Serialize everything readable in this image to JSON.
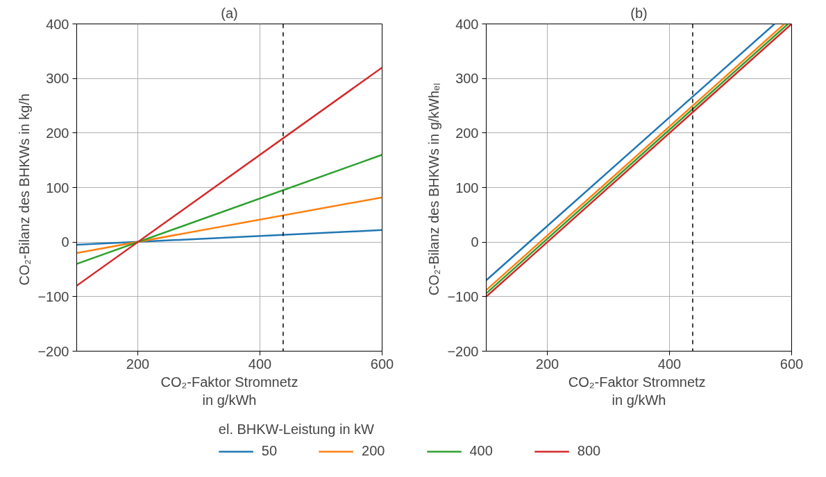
{
  "chart_data": [
    {
      "type": "line",
      "title": "(a)",
      "xlabel": "CO₂-Faktor Stromnetz\nin g/kWh",
      "ylabel": "CO₂-Bilanz des BHKWs  in kg/h",
      "xlim": [
        100,
        600
      ],
      "xticks": [
        200,
        400,
        600
      ],
      "ylim": [
        -200,
        400
      ],
      "yticks": [
        -200,
        -100,
        0,
        100,
        200,
        300,
        400
      ],
      "grid": true,
      "legend": "bottom",
      "legend_title": "el. BHKW-Leistung in kW",
      "ref_lines": [
        {
          "axis": "x",
          "value": 438,
          "color": "#000000",
          "line_style": "dashed"
        }
      ],
      "series": [
        {
          "name": "50",
          "color": "#1f77b4",
          "x": [
            100,
            600
          ],
          "values": [
            -5,
            22
          ]
        },
        {
          "name": "200",
          "color": "#ff7f0e",
          "x": [
            100,
            600
          ],
          "values": [
            -20,
            82
          ]
        },
        {
          "name": "400",
          "color": "#2ca02c",
          "x": [
            100,
            600
          ],
          "values": [
            -40,
            160
          ]
        },
        {
          "name": "800",
          "color": "#d62728",
          "x": [
            100,
            600
          ],
          "values": [
            -80,
            320
          ]
        }
      ]
    },
    {
      "type": "line",
      "title": "(b)",
      "xlabel": "CO₂-Faktor  Stromnetz\nin g/kWh",
      "ylabel": "CO₂-Bilanz des BHKWs  in g/kWhₑₗ",
      "xlim": [
        100,
        600
      ],
      "xticks": [
        200,
        400,
        600
      ],
      "ylim": [
        -200,
        400
      ],
      "yticks": [
        -200,
        -100,
        0,
        100,
        200,
        300,
        400
      ],
      "grid": true,
      "ref_lines": [
        {
          "axis": "x",
          "value": 438,
          "color": "#000000",
          "line_style": "dashed"
        }
      ],
      "series": [
        {
          "color": "#1f77b4",
          "x": [
            100,
            572
          ],
          "values": [
            -70,
            400
          ]
        },
        {
          "color": "#ff7f0e",
          "x": [
            100,
            588
          ],
          "values": [
            -88,
            400
          ]
        },
        {
          "color": "#2ca02c",
          "x": [
            100,
            594
          ],
          "values": [
            -94,
            400
          ]
        },
        {
          "color": "#d62728",
          "x": [
            100,
            600
          ],
          "values": [
            -100,
            400
          ]
        }
      ]
    }
  ]
}
